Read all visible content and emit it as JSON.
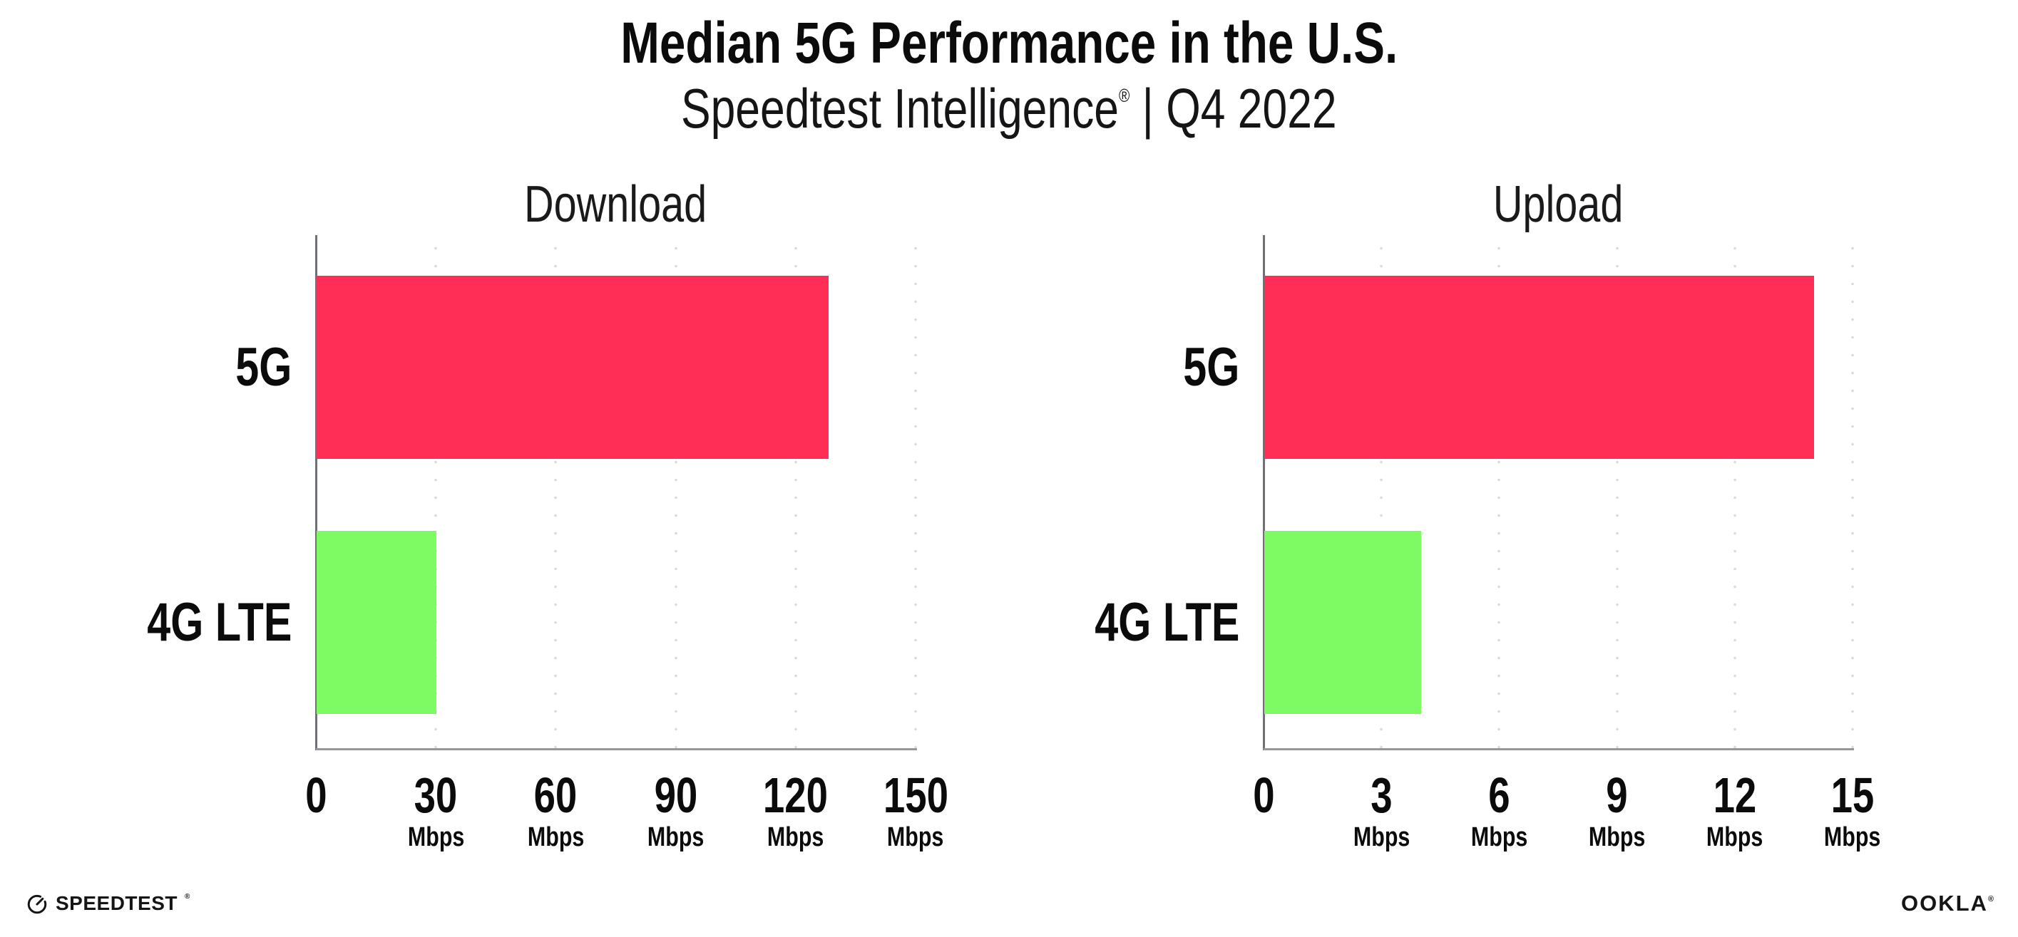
{
  "header": {
    "title": "Median 5G Performance in the U.S.",
    "subtitle_brand": "Speedtest Intelligence",
    "subtitle_reg": "®",
    "subtitle_period": " | Q4 2022"
  },
  "footer": {
    "speedtest_logo_text": "SPEEDTEST",
    "speedtest_reg": "®",
    "ookla_logo_text": "OOKLA",
    "ookla_reg": "®"
  },
  "colors": {
    "bar_5g": "#FF2E56",
    "bar_4g_lte": "#7EFB63",
    "x_axis": "#96969b",
    "y_axis": "#707076",
    "gridline": "#d9d9e0",
    "text": "#0b0b0c"
  },
  "chart_data": [
    {
      "type": "bar",
      "orientation": "horizontal",
      "title": "Download",
      "categories": [
        "5G",
        "4G LTE"
      ],
      "values": [
        128,
        30
      ],
      "unit": "Mbps",
      "xlim": [
        0,
        150
      ],
      "xticks": [
        0,
        30,
        60,
        90,
        120,
        150
      ],
      "bar_colors": [
        "#FF2E56",
        "#7EFB63"
      ],
      "grid": "dotted-vertical",
      "legend": "none"
    },
    {
      "type": "bar",
      "orientation": "horizontal",
      "title": "Upload",
      "categories": [
        "5G",
        "4G LTE"
      ],
      "values": [
        14,
        4
      ],
      "unit": "Mbps",
      "xlim": [
        0,
        15
      ],
      "xticks": [
        0,
        3,
        6,
        9,
        12,
        15
      ],
      "bar_colors": [
        "#FF2E56",
        "#7EFB63"
      ],
      "grid": "dotted-vertical",
      "legend": "none"
    }
  ]
}
